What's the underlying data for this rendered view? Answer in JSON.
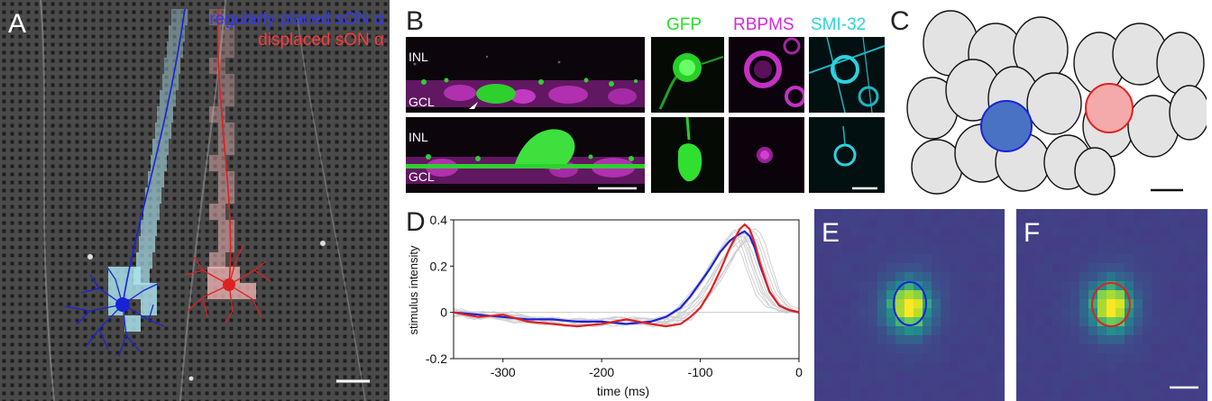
{
  "figure": {
    "panels": {
      "a": {
        "label": "A",
        "legend_blue": "regularly placed sON α",
        "legend_red": "displaced sON α"
      },
      "b": {
        "label": "B",
        "layer_top": "INL",
        "layer_bottom": "GCL",
        "channels": [
          "GFP",
          "RBPMS",
          "SMI-32"
        ]
      },
      "c": {
        "label": "C"
      },
      "d": {
        "label": "D"
      },
      "e": {
        "label": "E"
      },
      "f": {
        "label": "F"
      }
    },
    "colors": {
      "blue_cell": "#1a22d8",
      "red_cell": "#e02020",
      "gfp": "#27e027",
      "rbpms": "#d629d6",
      "smi32": "#2bd3e0",
      "heatmap_bg": "#433d85"
    }
  },
  "chart_data": {
    "type": "line",
    "xlabel": "time (ms)",
    "ylabel": "stimulus intensity",
    "xlim": [
      -350,
      0
    ],
    "ylim": [
      -0.2,
      0.4
    ],
    "xticks": [
      -300,
      -200,
      -100,
      0
    ],
    "yticks": [
      -0.2,
      0,
      0.2,
      0.4
    ],
    "x": [
      -350,
      -325,
      -300,
      -275,
      -250,
      -225,
      -200,
      -175,
      -150,
      -135,
      -120,
      -110,
      -100,
      -90,
      -80,
      -70,
      -60,
      -55,
      -50,
      -45,
      -40,
      -30,
      -20,
      -10,
      0
    ],
    "series": [
      {
        "color": "#1a22d8",
        "values": [
          0.0,
          -0.01,
          -0.02,
          -0.03,
          -0.03,
          -0.04,
          -0.04,
          -0.05,
          -0.04,
          -0.02,
          0.02,
          0.07,
          0.13,
          0.19,
          0.26,
          0.31,
          0.34,
          0.35,
          0.33,
          0.28,
          0.21,
          0.09,
          0.03,
          0.01,
          0.0
        ]
      },
      {
        "color": "#e02020",
        "values": [
          0.0,
          -0.02,
          -0.01,
          -0.04,
          -0.05,
          -0.06,
          -0.05,
          -0.03,
          -0.05,
          -0.06,
          -0.05,
          -0.02,
          0.02,
          0.09,
          0.18,
          0.28,
          0.36,
          0.38,
          0.36,
          0.3,
          0.22,
          0.09,
          0.03,
          0.01,
          0.0
        ]
      }
    ]
  }
}
